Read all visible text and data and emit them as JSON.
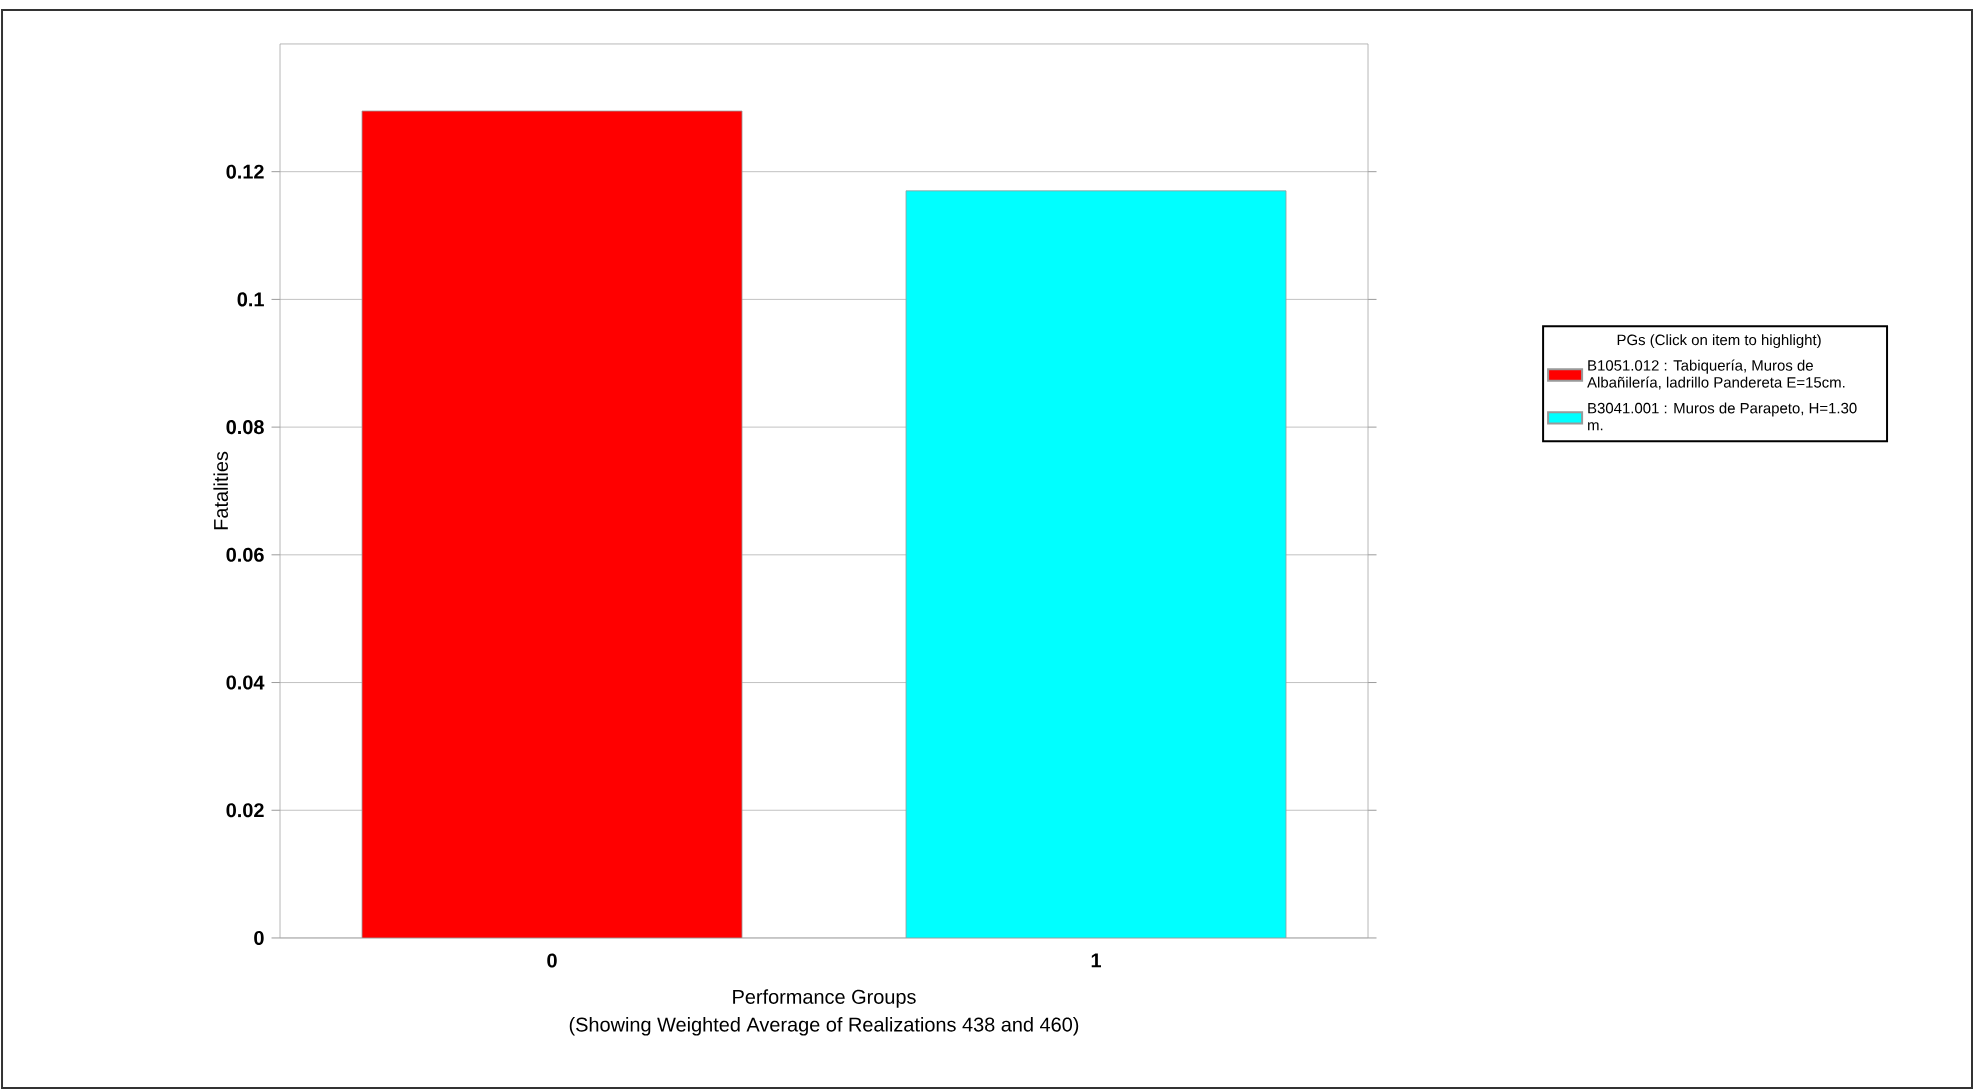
{
  "chart_data": {
    "type": "bar",
    "xlabel": "Performance Groups",
    "ylabel": "Fatalities",
    "annotations": [
      "(Showing Weighted Average of Realizations 438 and 460)"
    ],
    "legend_title": "PGs (Click on item to highlight)",
    "categories": [
      "0",
      "1"
    ],
    "series": [
      {
        "name": "B1051.012 : Tabiquería, Muros de Albañilería, ladrillo Pandereta E=15cm.",
        "color": "#ff0000",
        "values": [
          0.1295,
          null
        ]
      },
      {
        "name": "B3041.001 : Muros de Parapeto, H=1.30 m.",
        "color": "#00ffff",
        "values": [
          null,
          0.117
        ]
      }
    ],
    "ylim": [
      0,
      0.14
    ],
    "yticks": [
      0,
      0.02,
      0.04,
      0.06,
      0.08,
      0.1,
      0.12
    ],
    "grid": "y",
    "legend": "right"
  }
}
